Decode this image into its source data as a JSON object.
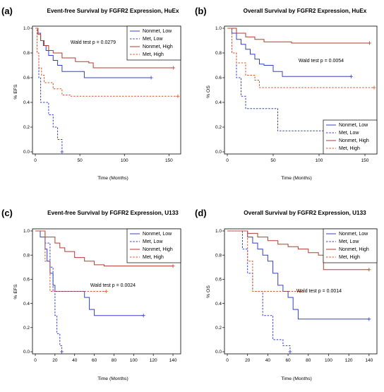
{
  "colors": {
    "nonmet_low": "#3340c8",
    "met_low": "#3340c8",
    "nonmet_high": "#b83a2c",
    "met_high": "#d3552c"
  },
  "chart_data": [
    {
      "type": "line",
      "panel": "(a)",
      "title": "Event-free Survival by FGFR2 Expression, HuEx",
      "xlabel": "Time (Months)",
      "ylabel": "% EFS",
      "xlim": [
        0,
        160
      ],
      "ylim": [
        0,
        1
      ],
      "xticks": [
        "0",
        "50",
        "100",
        "150"
      ],
      "yticks": [
        "0.0",
        "0.2",
        "0.4",
        "0.6",
        "0.8",
        "1.0"
      ],
      "legend_position": "top-right",
      "annotation": "Wald test p = 0.0279",
      "series": [
        {
          "name": "Nonmet, Low",
          "style": "solid",
          "color": "#3340c8",
          "x": [
            0,
            3,
            6,
            9,
            12,
            15,
            20,
            25,
            30,
            40,
            55,
            70,
            130
          ],
          "y": [
            1.0,
            0.96,
            0.9,
            0.86,
            0.82,
            0.78,
            0.74,
            0.7,
            0.65,
            0.65,
            0.6,
            0.6,
            0.6
          ]
        },
        {
          "name": "Met, Low",
          "style": "dashed",
          "color": "#3340c8",
          "x": [
            0,
            2,
            4,
            6,
            12,
            15,
            20,
            25,
            30
          ],
          "y": [
            1.0,
            0.8,
            0.6,
            0.4,
            0.4,
            0.3,
            0.2,
            0.1,
            0.0
          ]
        },
        {
          "name": "Nonmet, High",
          "style": "solid",
          "color": "#b83a2c",
          "x": [
            0,
            3,
            6,
            10,
            15,
            20,
            30,
            45,
            60,
            65,
            155
          ],
          "y": [
            1.0,
            0.95,
            0.9,
            0.86,
            0.82,
            0.8,
            0.76,
            0.73,
            0.72,
            0.68,
            0.68
          ]
        },
        {
          "name": "Met, High",
          "style": "dashed",
          "color": "#d3552c",
          "x": [
            0,
            2,
            4,
            7,
            10,
            20,
            30,
            40,
            160
          ],
          "y": [
            1.0,
            0.8,
            0.68,
            0.62,
            0.56,
            0.51,
            0.46,
            0.45,
            0.45
          ]
        }
      ]
    },
    {
      "type": "line",
      "panel": "(b)",
      "title": "Overall Survival by FGFR2 Expression, HuEx",
      "xlabel": "Time (Months)",
      "ylabel": "% OS",
      "xlim": [
        0,
        160
      ],
      "ylim": [
        0,
        1
      ],
      "xticks": [
        "0",
        "50",
        "100",
        "150"
      ],
      "yticks": [
        "0.0",
        "0.2",
        "0.4",
        "0.6",
        "0.8",
        "1.0"
      ],
      "legend_position": "bottom-right",
      "annotation": "Wald test p = 0.0054",
      "series": [
        {
          "name": "Nonmet, Low",
          "style": "solid",
          "color": "#3340c8",
          "x": [
            0,
            5,
            10,
            15,
            20,
            25,
            30,
            35,
            40,
            45,
            50,
            60,
            135
          ],
          "y": [
            1.0,
            0.96,
            0.91,
            0.87,
            0.83,
            0.79,
            0.75,
            0.71,
            0.7,
            0.7,
            0.65,
            0.61,
            0.61
          ]
        },
        {
          "name": "Met, Low",
          "style": "dashed",
          "color": "#3340c8",
          "x": [
            0,
            5,
            10,
            15,
            20,
            55,
            155
          ],
          "y": [
            1.0,
            0.8,
            0.6,
            0.45,
            0.35,
            0.17,
            0.17
          ]
        },
        {
          "name": "Nonmet, High",
          "style": "solid",
          "color": "#b83a2c",
          "x": [
            0,
            10,
            20,
            30,
            40,
            50,
            60,
            70,
            155
          ],
          "y": [
            1.0,
            0.96,
            0.93,
            0.91,
            0.89,
            0.89,
            0.89,
            0.88,
            0.88
          ]
        },
        {
          "name": "Met, High",
          "style": "dashed",
          "color": "#d3552c",
          "x": [
            0,
            5,
            10,
            20,
            30,
            35,
            160
          ],
          "y": [
            1.0,
            0.8,
            0.72,
            0.62,
            0.58,
            0.52,
            0.52
          ]
        }
      ]
    },
    {
      "type": "line",
      "panel": "(c)",
      "title": "Event-free Survival by FGFR2 Expression, U133",
      "xlabel": "Time (Months)",
      "ylabel": "% EFS",
      "xlim": [
        0,
        145
      ],
      "ylim": [
        0,
        1
      ],
      "xticks": [
        "0",
        "20",
        "40",
        "60",
        "80",
        "100",
        "120",
        "140"
      ],
      "yticks": [
        "0.0",
        "0.2",
        "0.4",
        "0.6",
        "0.8",
        "1.0"
      ],
      "legend_position": "top-right",
      "annotation": "Wald test p = 0.0024",
      "series": [
        {
          "name": "Nonmet, Low",
          "style": "solid",
          "color": "#3340c8",
          "x": [
            0,
            5,
            10,
            12,
            15,
            18,
            20,
            30,
            50,
            55,
            60,
            110
          ],
          "y": [
            1.0,
            0.95,
            0.85,
            0.75,
            0.65,
            0.55,
            0.5,
            0.5,
            0.45,
            0.35,
            0.3,
            0.3
          ]
        },
        {
          "name": "Met, Low",
          "style": "dashed",
          "color": "#3340c8",
          "x": [
            0,
            10,
            15,
            18,
            20,
            22,
            25,
            27
          ],
          "y": [
            1.0,
            0.9,
            0.7,
            0.5,
            0.3,
            0.15,
            0.05,
            0.0
          ]
        },
        {
          "name": "Nonmet, High",
          "style": "solid",
          "color": "#b83a2c",
          "x": [
            0,
            10,
            20,
            25,
            30,
            40,
            50,
            60,
            70,
            140
          ],
          "y": [
            1.0,
            0.95,
            0.9,
            0.86,
            0.83,
            0.78,
            0.75,
            0.72,
            0.71,
            0.71
          ]
        },
        {
          "name": "Met, High",
          "style": "dashed",
          "color": "#d3552c",
          "x": [
            0,
            10,
            15,
            20,
            72
          ],
          "y": [
            1.0,
            0.75,
            0.5,
            0.5,
            0.5
          ]
        }
      ]
    },
    {
      "type": "line",
      "panel": "(d)",
      "title": "Overall Survival by FGFR2 Expression, U133",
      "xlabel": "Time (Months)",
      "ylabel": "% OS",
      "xlim": [
        0,
        145
      ],
      "ylim": [
        0,
        1
      ],
      "xticks": [
        "0",
        "20",
        "40",
        "60",
        "80",
        "100",
        "120",
        "140"
      ],
      "yticks": [
        "0.0",
        "0.2",
        "0.4",
        "0.6",
        "0.8",
        "1.0"
      ],
      "legend_position": "top-right",
      "annotation": "Wald test p = 0.0014",
      "series": [
        {
          "name": "Nonmet, Low",
          "style": "solid",
          "color": "#3340c8",
          "x": [
            0,
            15,
            20,
            25,
            30,
            35,
            40,
            45,
            50,
            55,
            60,
            65,
            70,
            140
          ],
          "y": [
            1.0,
            1.0,
            0.95,
            0.9,
            0.85,
            0.8,
            0.75,
            0.65,
            0.55,
            0.5,
            0.45,
            0.35,
            0.27,
            0.27
          ]
        },
        {
          "name": "Met, Low",
          "style": "dashed",
          "color": "#3340c8",
          "x": [
            0,
            15,
            20,
            25,
            35,
            45,
            55,
            62
          ],
          "y": [
            1.0,
            0.85,
            0.65,
            0.5,
            0.3,
            0.1,
            0.05,
            0.0
          ]
        },
        {
          "name": "Nonmet, High",
          "style": "solid",
          "color": "#b83a2c",
          "x": [
            0,
            20,
            30,
            40,
            50,
            60,
            70,
            80,
            90,
            95,
            140
          ],
          "y": [
            1.0,
            0.98,
            0.95,
            0.92,
            0.89,
            0.87,
            0.85,
            0.82,
            0.8,
            0.68,
            0.68
          ]
        },
        {
          "name": "Met, High",
          "style": "dashed",
          "color": "#d3552c",
          "x": [
            0,
            20,
            25,
            40,
            72
          ],
          "y": [
            1.0,
            0.75,
            0.5,
            0.5,
            0.5
          ]
        }
      ]
    }
  ]
}
